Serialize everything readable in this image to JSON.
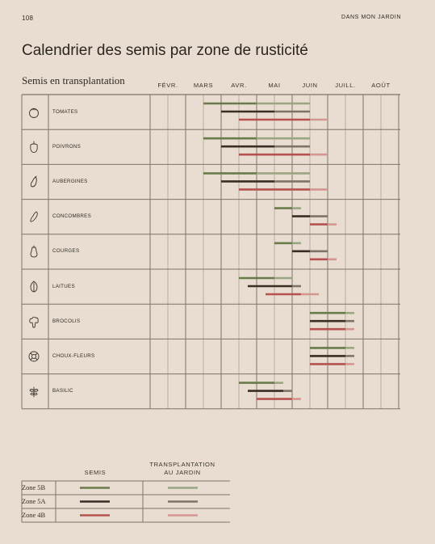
{
  "page": {
    "number": "108",
    "running_head": "DANS MON JARDIN",
    "title": "Calendrier des semis par zone de rusticité",
    "section": "Semis en transplantation"
  },
  "colors": {
    "background": "#e8ddd0",
    "grid": "#7d7566",
    "zone_5b_semis": "#6b7a4b",
    "zone_5a_semis": "#3b2d25",
    "zone_4b_semis": "#b5524f",
    "zone_5b_transplantation": "#9aa584",
    "zone_5a_transplantation": "#7e7368",
    "zone_4b_transplantation": "#d49690"
  },
  "months": [
    "FÉVR.",
    "MARS",
    "AVR.",
    "MAI",
    "JUIN",
    "JUILL.",
    "AOÛT"
  ],
  "legend": {
    "col_semis": "SEMIS",
    "col_transplantation_line1": "TRANSPLANTATION",
    "col_transplantation_line2": "AU JARDIN",
    "zones": [
      "Zone 5B",
      "Zone 5A",
      "Zone 4B"
    ]
  },
  "chart_data": {
    "type": "gantt",
    "time_unit": "half-month (0 = début février, 14 = fin août)",
    "series_order": [
      "Zone 5B",
      "Zone 5A",
      "Zone 4B"
    ],
    "crops": [
      {
        "name": "TOMATES",
        "icon": "tomato-icon",
        "zones": [
          {
            "zone": "Zone 5B",
            "semis": [
              3,
              6
            ],
            "transplantation": [
              6,
              9
            ]
          },
          {
            "zone": "Zone 5A",
            "semis": [
              4,
              7
            ],
            "transplantation": [
              7,
              9
            ]
          },
          {
            "zone": "Zone 4B",
            "semis": [
              5,
              9
            ],
            "transplantation": [
              9,
              10
            ]
          }
        ]
      },
      {
        "name": "POIVRONS",
        "icon": "pepper-icon",
        "zones": [
          {
            "zone": "Zone 5B",
            "semis": [
              3,
              6
            ],
            "transplantation": [
              6,
              9
            ]
          },
          {
            "zone": "Zone 5A",
            "semis": [
              4,
              7
            ],
            "transplantation": [
              7,
              9
            ]
          },
          {
            "zone": "Zone 4B",
            "semis": [
              5,
              9
            ],
            "transplantation": [
              9,
              10
            ]
          }
        ]
      },
      {
        "name": "AUBERGINES",
        "icon": "eggplant-icon",
        "zones": [
          {
            "zone": "Zone 5B",
            "semis": [
              3,
              6
            ],
            "transplantation": [
              6,
              9
            ]
          },
          {
            "zone": "Zone 5A",
            "semis": [
              4,
              7
            ],
            "transplantation": [
              7,
              9
            ]
          },
          {
            "zone": "Zone 4B",
            "semis": [
              5,
              9
            ],
            "transplantation": [
              9,
              10
            ]
          }
        ]
      },
      {
        "name": "CONCOMBRES",
        "icon": "cucumber-icon",
        "zones": [
          {
            "zone": "Zone 5B",
            "semis": [
              7,
              8
            ],
            "transplantation": [
              8,
              8.5
            ]
          },
          {
            "zone": "Zone 5A",
            "semis": [
              8,
              9
            ],
            "transplantation": [
              9,
              10
            ]
          },
          {
            "zone": "Zone 4B",
            "semis": [
              9,
              10
            ],
            "transplantation": [
              10,
              10.5
            ]
          }
        ]
      },
      {
        "name": "COURGES",
        "icon": "squash-icon",
        "zones": [
          {
            "zone": "Zone 5B",
            "semis": [
              7,
              8
            ],
            "transplantation": [
              8,
              8.5
            ]
          },
          {
            "zone": "Zone 5A",
            "semis": [
              8,
              9
            ],
            "transplantation": [
              9,
              10
            ]
          },
          {
            "zone": "Zone 4B",
            "semis": [
              9,
              10
            ],
            "transplantation": [
              10,
              10.5
            ]
          }
        ]
      },
      {
        "name": "LAITUES",
        "icon": "lettuce-icon",
        "zones": [
          {
            "zone": "Zone 5B",
            "semis": [
              5,
              7
            ],
            "transplantation": [
              7,
              8
            ]
          },
          {
            "zone": "Zone 5A",
            "semis": [
              5.5,
              8
            ],
            "transplantation": [
              8,
              8.5
            ]
          },
          {
            "zone": "Zone 4B",
            "semis": [
              6.5,
              8.5
            ],
            "transplantation": [
              8.5,
              9.5
            ]
          }
        ]
      },
      {
        "name": "BROCOLIS",
        "icon": "broccoli-icon",
        "zones": [
          {
            "zone": "Zone 5B",
            "semis": [
              9,
              11
            ],
            "transplantation": [
              11,
              11.5
            ]
          },
          {
            "zone": "Zone 5A",
            "semis": [
              9,
              11
            ],
            "transplantation": [
              11,
              11.5
            ]
          },
          {
            "zone": "Zone 4B",
            "semis": [
              9,
              11
            ],
            "transplantation": [
              11,
              11.5
            ]
          }
        ]
      },
      {
        "name": "CHOUX-FLEURS",
        "icon": "cauliflower-icon",
        "zones": [
          {
            "zone": "Zone 5B",
            "semis": [
              9,
              11
            ],
            "transplantation": [
              11,
              11.5
            ]
          },
          {
            "zone": "Zone 5A",
            "semis": [
              9,
              11
            ],
            "transplantation": [
              11,
              11.5
            ]
          },
          {
            "zone": "Zone 4B",
            "semis": [
              9,
              11
            ],
            "transplantation": [
              11,
              11.5
            ]
          }
        ]
      },
      {
        "name": "BASILIC",
        "icon": "basil-icon",
        "zones": [
          {
            "zone": "Zone 5B",
            "semis": [
              5,
              7
            ],
            "transplantation": [
              7,
              7.5
            ]
          },
          {
            "zone": "Zone 5A",
            "semis": [
              5.5,
              7.5
            ],
            "transplantation": [
              7.5,
              8
            ]
          },
          {
            "zone": "Zone 4B",
            "semis": [
              6,
              8
            ],
            "transplantation": [
              8,
              8.5
            ]
          }
        ]
      }
    ]
  }
}
